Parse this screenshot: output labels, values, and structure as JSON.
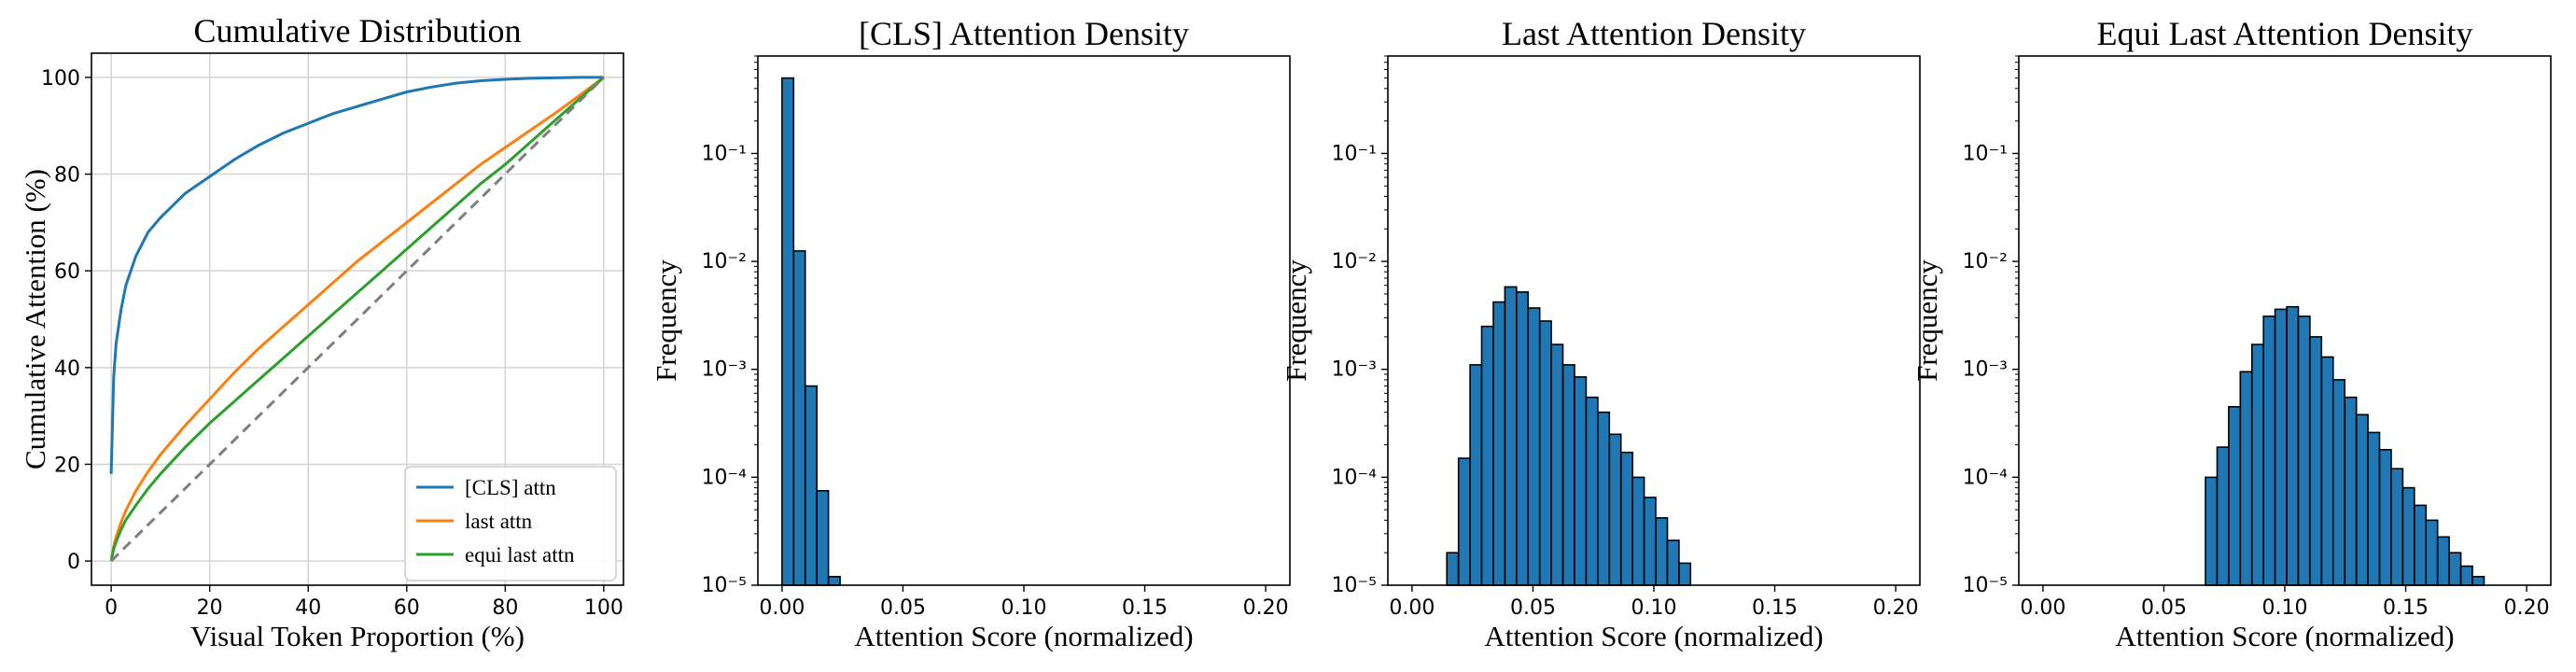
{
  "chart_data": [
    {
      "type": "line",
      "title": "Cumulative Distribution",
      "xlabel": "Visual Token Proportion (%)",
      "ylabel": "Cumulative Attention (%)",
      "xlim": [
        -4,
        104
      ],
      "ylim": [
        -5,
        105
      ],
      "xticks": [
        0,
        20,
        40,
        60,
        80,
        100
      ],
      "yticks": [
        0,
        20,
        40,
        60,
        80,
        100
      ],
      "grid": true,
      "legend_position": "lower-right",
      "x": [
        0,
        0.5,
        1,
        2,
        3,
        5,
        7.5,
        10,
        15,
        20,
        25,
        30,
        35,
        40,
        45,
        50,
        55,
        60,
        65,
        70,
        75,
        80,
        85,
        90,
        95,
        100
      ],
      "series": [
        {
          "name": "[CLS] attn",
          "color": "#1f77b4",
          "values": [
            18,
            38,
            45,
            52,
            57,
            63,
            68,
            71,
            76,
            79.5,
            83,
            86,
            88.5,
            90.5,
            92.5,
            94,
            95.5,
            97,
            98,
            98.8,
            99.3,
            99.6,
            99.8,
            99.9,
            100,
            100
          ]
        },
        {
          "name": "last attn",
          "color": "#ff7f0e",
          "values": [
            0,
            3,
            5,
            8,
            10.5,
            14.5,
            18.5,
            22,
            28,
            33.5,
            39,
            44,
            48.5,
            53,
            57.5,
            62,
            66,
            70,
            74,
            78,
            82,
            85.5,
            89,
            92.5,
            96.2,
            100
          ]
        },
        {
          "name": "equi last attn",
          "color": "#2ca02c",
          "values": [
            0,
            2.5,
            4,
            6.5,
            8.5,
            11.5,
            15,
            18,
            23.5,
            28.5,
            33,
            37.5,
            42,
            46.5,
            51,
            55.5,
            60,
            64.5,
            69,
            73.5,
            78,
            82,
            86.5,
            91,
            95.5,
            100
          ]
        },
        {
          "name": "",
          "color": "#7f7f7f",
          "dashed": true,
          "values": [
            0,
            0.5,
            1,
            2,
            3,
            5,
            7.5,
            10,
            15,
            20,
            25,
            30,
            35,
            40,
            45,
            50,
            55,
            60,
            65,
            70,
            75,
            80,
            85,
            90,
            95,
            100
          ]
        }
      ]
    },
    {
      "type": "bar",
      "title": "[CLS] Attention Density",
      "xlabel": "Attention Score (normalized)",
      "ylabel": "Frequency",
      "yscale": "log",
      "xlim": [
        -0.01,
        0.21
      ],
      "ylim": [
        1e-05,
        0.8
      ],
      "xticks": [
        "0.00",
        "0.05",
        "0.10",
        "0.15",
        "0.20"
      ],
      "yticks": [
        "10⁻⁵",
        "10⁻⁴",
        "10⁻³",
        "10⁻²",
        "10⁻¹"
      ],
      "bar_color": "#1f77b4",
      "bin_width": 0.0048,
      "bin_starts": [
        0.0,
        0.0048,
        0.0096,
        0.0144,
        0.0192
      ],
      "values": [
        0.5,
        0.0125,
        0.0007,
        7.5e-05,
        1.2e-05
      ]
    },
    {
      "type": "bar",
      "title": "Last Attention Density",
      "xlabel": "Attention Score (normalized)",
      "ylabel": "Frequency",
      "yscale": "log",
      "xlim": [
        -0.01,
        0.21
      ],
      "ylim": [
        1e-05,
        0.8
      ],
      "xticks": [
        "0.00",
        "0.05",
        "0.10",
        "0.15",
        "0.20"
      ],
      "yticks": [
        "10⁻⁵",
        "10⁻⁴",
        "10⁻³",
        "10⁻²",
        "10⁻¹"
      ],
      "bar_color": "#1f77b4",
      "bin_width": 0.0048,
      "bin_starts": [
        0.0144,
        0.0192,
        0.024,
        0.0288,
        0.0336,
        0.0384,
        0.0432,
        0.048,
        0.0528,
        0.0576,
        0.0624,
        0.0672,
        0.072,
        0.0768,
        0.0816,
        0.0864,
        0.0912,
        0.096,
        0.1008,
        0.1056,
        0.1104
      ],
      "values": [
        2e-05,
        0.00015,
        0.0011,
        0.0025,
        0.0042,
        0.0058,
        0.0052,
        0.0037,
        0.0028,
        0.0017,
        0.0011,
        0.00085,
        0.00055,
        0.0004,
        0.00025,
        0.00017,
        0.0001,
        6.5e-05,
        4.2e-05,
        2.6e-05,
        1.6e-05
      ]
    },
    {
      "type": "bar",
      "title": "Equi Last Attention Density",
      "xlabel": "Attention Score (normalized)",
      "ylabel": "Frequency",
      "yscale": "log",
      "xlim": [
        -0.01,
        0.21
      ],
      "ylim": [
        1e-05,
        0.8
      ],
      "xticks": [
        "0.00",
        "0.05",
        "0.10",
        "0.15",
        "0.20"
      ],
      "yticks": [
        "10⁻⁵",
        "10⁻⁴",
        "10⁻³",
        "10⁻²",
        "10⁻¹"
      ],
      "bar_color": "#1f77b4",
      "bin_width": 0.0048,
      "bin_starts": [
        0.0672,
        0.072,
        0.0768,
        0.0816,
        0.0864,
        0.0912,
        0.096,
        0.1008,
        0.1056,
        0.1104,
        0.1152,
        0.12,
        0.1248,
        0.1296,
        0.1344,
        0.1392,
        0.144,
        0.1488,
        0.1536,
        0.1584,
        0.1632,
        0.168,
        0.1728,
        0.1776
      ],
      "values": [
        0.0001,
        0.00019,
        0.00045,
        0.00095,
        0.0017,
        0.0031,
        0.0036,
        0.0038,
        0.0031,
        0.002,
        0.0013,
        0.0008,
        0.00055,
        0.00038,
        0.00026,
        0.00018,
        0.00012,
        8e-05,
        5.5e-05,
        4e-05,
        2.8e-05,
        2e-05,
        1.5e-05,
        1.2e-05
      ]
    }
  ]
}
